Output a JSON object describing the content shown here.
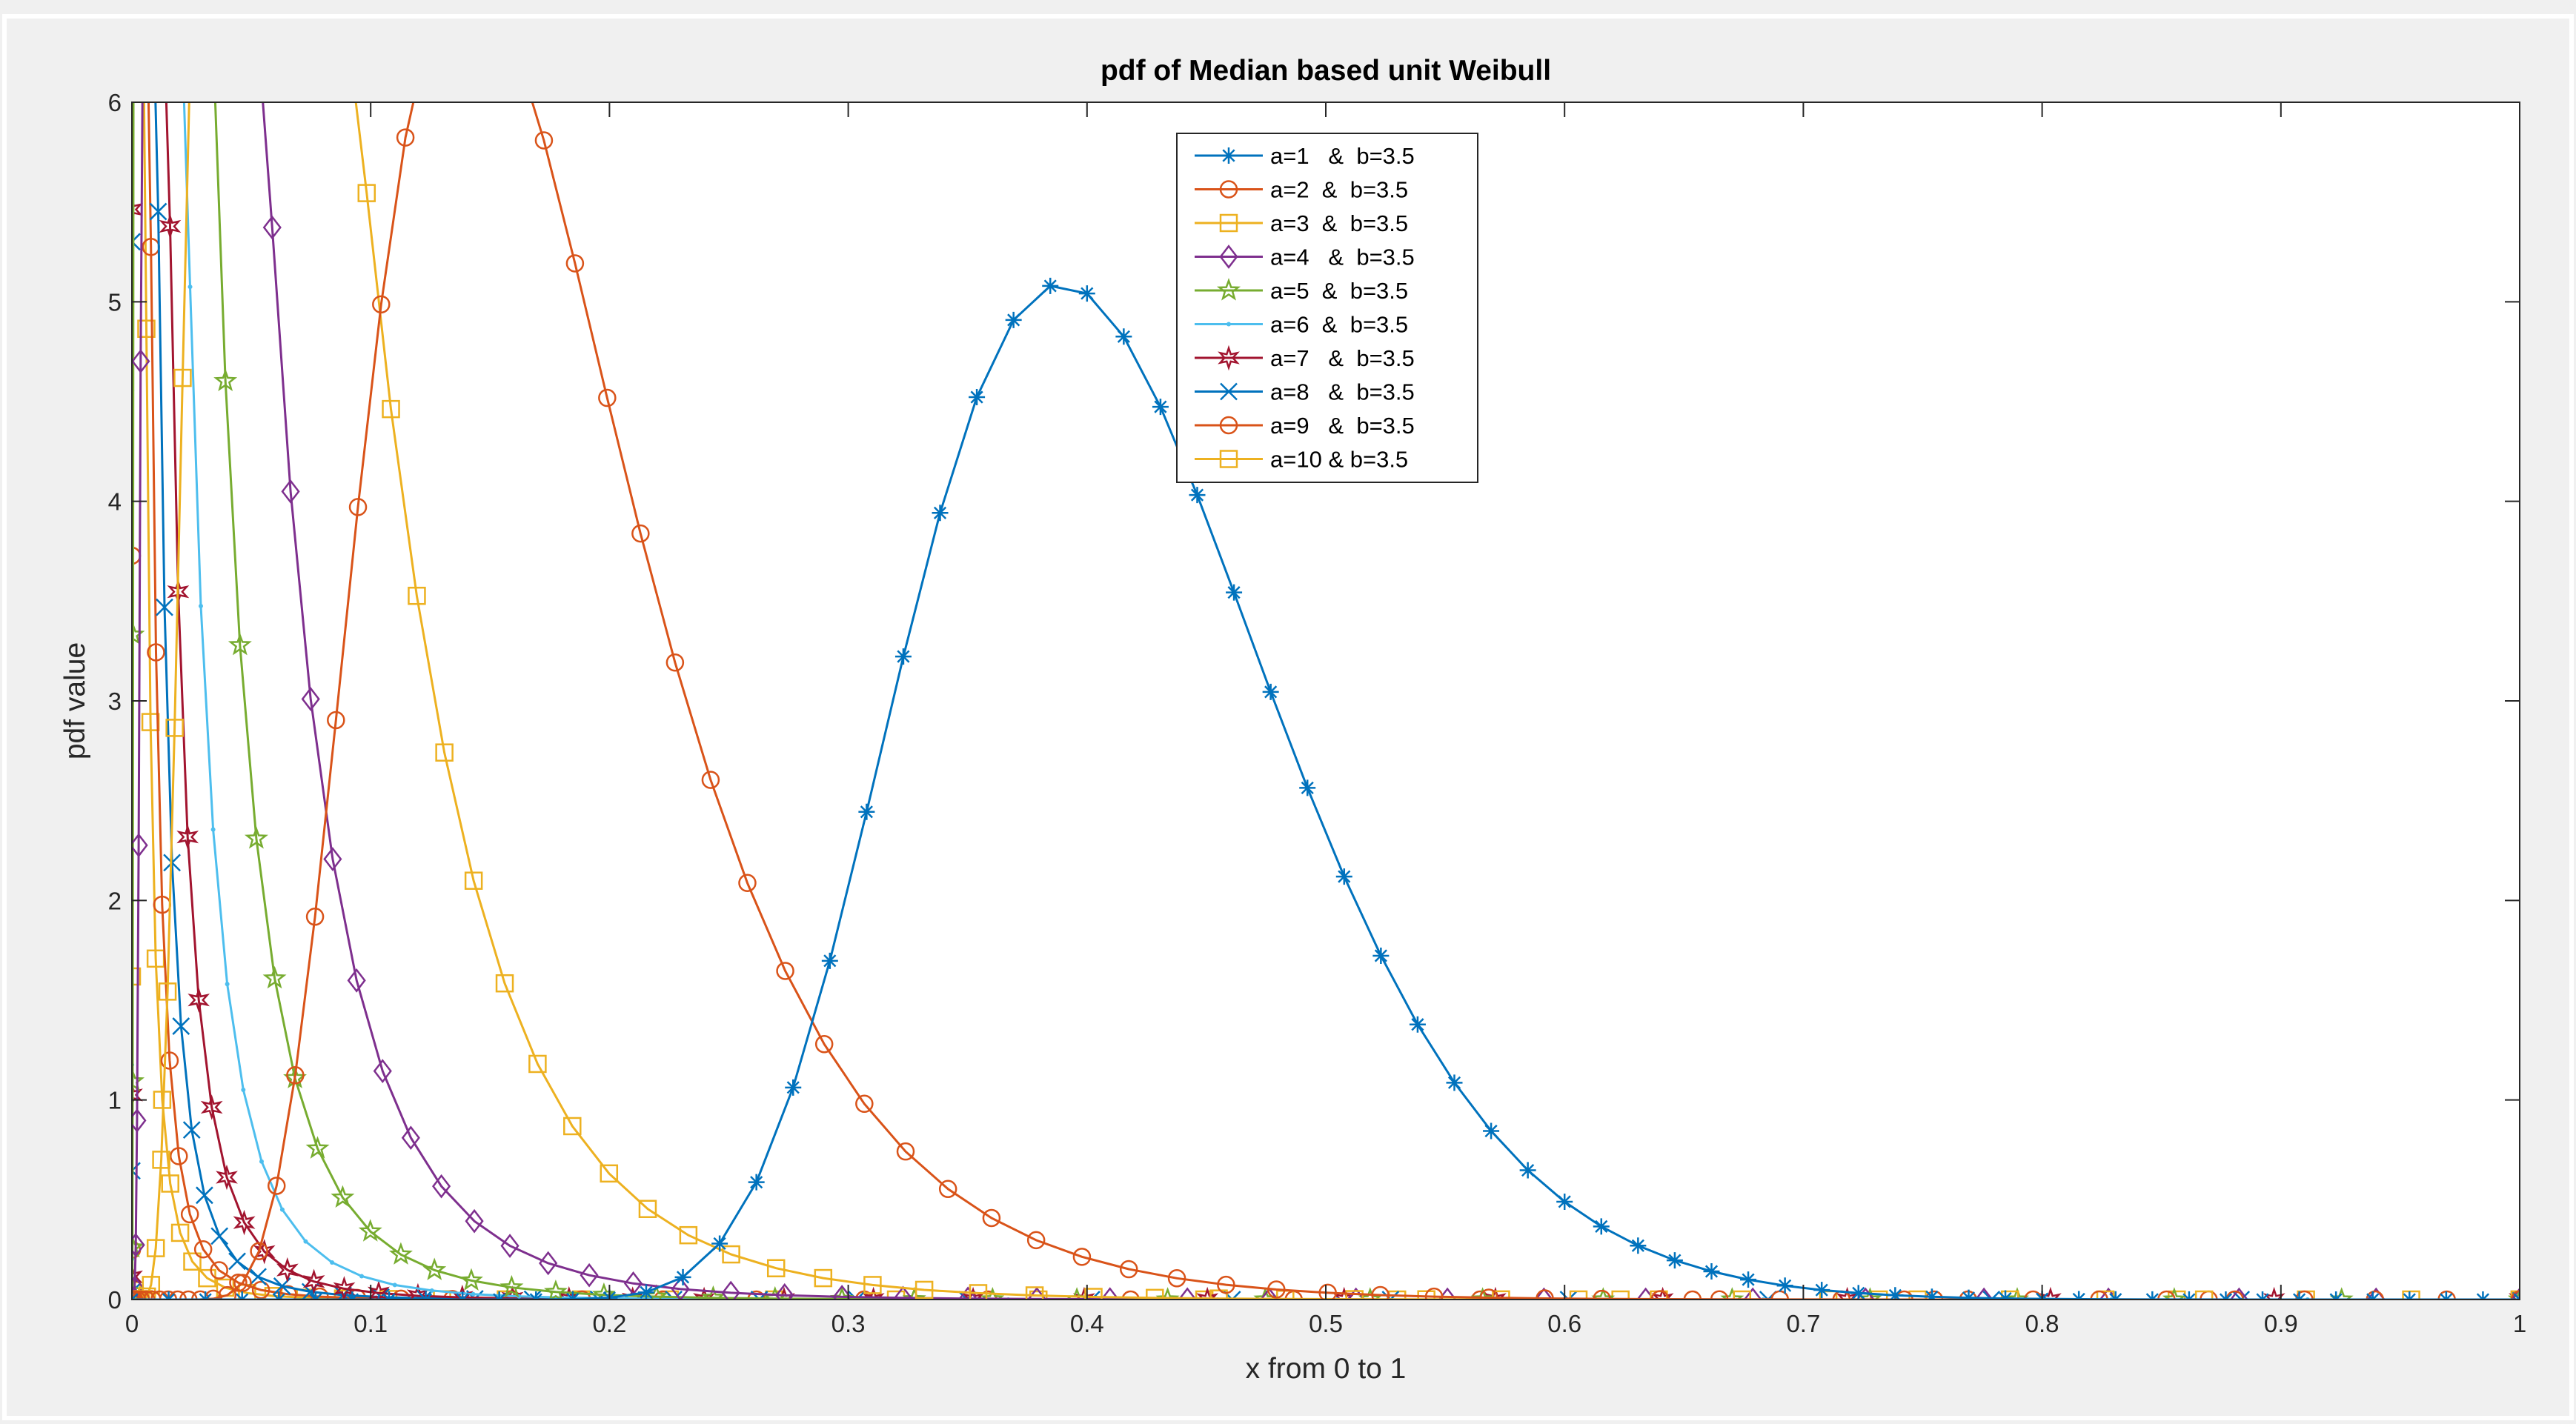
{
  "chart_data": {
    "type": "line",
    "title": "pdf of Median based unit Weibull",
    "xlabel": "x from 0 to 1",
    "ylabel": "pdf value",
    "xlim": [
      0,
      1
    ],
    "ylim": [
      0,
      6
    ],
    "xticks": [
      "0",
      "0.1",
      "0.2",
      "0.3",
      "0.4",
      "0.5",
      "0.6",
      "0.7",
      "0.8",
      "0.9",
      "1"
    ],
    "yticks": [
      "0",
      "1",
      "2",
      "3",
      "4",
      "5",
      "6"
    ],
    "grid": false,
    "legend_position": "top-center",
    "series": [
      {
        "name": "a=1   &  b=3.5",
        "color": "#0072BD",
        "marker": "asterisk"
      },
      {
        "name": "a=2  &  b=3.5",
        "color": "#D95319",
        "marker": "circle"
      },
      {
        "name": "a=3  &  b=3.5",
        "color": "#EDB120",
        "marker": "square"
      },
      {
        "name": "a=4   &  b=3.5",
        "color": "#7E2F8E",
        "marker": "diamond"
      },
      {
        "name": "a=5  &  b=3.5",
        "color": "#77AC30",
        "marker": "pentagram"
      },
      {
        "name": "a=6  &  b=3.5",
        "color": "#4DBEEE",
        "marker": "point"
      },
      {
        "name": "a=7   &  b=3.5",
        "color": "#A2142F",
        "marker": "hexagram"
      },
      {
        "name": "a=8   &  b=3.5",
        "color": "#0072BD",
        "marker": "cross"
      },
      {
        "name": "a=9   &  b=3.5",
        "color": "#D95319",
        "marker": "circle"
      },
      {
        "name": "a=10 & b=3.5",
        "color": "#EDB120",
        "marker": "square"
      }
    ]
  }
}
